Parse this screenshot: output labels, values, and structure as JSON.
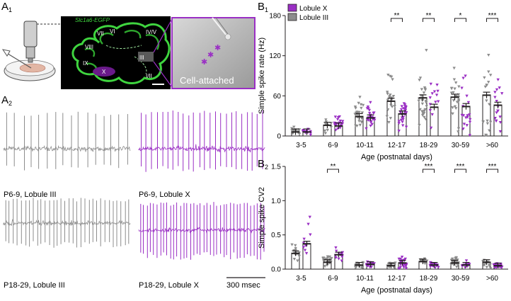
{
  "panel_labels": {
    "a1": "A",
    "a1_sub": "1",
    "a2": "A",
    "a2_sub": "2",
    "b1": "B",
    "b1_sub": "1",
    "b2": "B",
    "b2_sub": "2"
  },
  "micrograph": {
    "stain_label": "Slc1a6-EGFP",
    "lobules": [
      "VI",
      "VII",
      "IV/V",
      "VIII",
      "III",
      "IX",
      "X",
      "I/II"
    ],
    "inset_label": "Cell-attached"
  },
  "traces": {
    "p69_lobule_iii": "P6-9, Lobule III",
    "p69_lobule_x": "P6-9, Lobule X",
    "p1829_lobule_iii": "P18-29, Lobule III",
    "p1829_lobule_x": "P18-29, Lobule X",
    "scalebar": "300 msec"
  },
  "colors": {
    "lobule_x": "#9a2fc4",
    "lobule_iii": "#8c8c8c",
    "green": "#3fd43f"
  },
  "chart_data": [
    {
      "type": "scatter",
      "xlabel": "Age (postnatal days)",
      "ylabel": "Simple spike rate (Hz)",
      "ylim": [
        0,
        180
      ],
      "yticks": [
        "0",
        "60",
        "120",
        "180"
      ],
      "categories": [
        "3-5",
        "6-9",
        "10-11",
        "12-17",
        "18-29",
        "30-59",
        ">60"
      ],
      "legend": [
        "Lobule X",
        "Lobule III"
      ],
      "series": [
        {
          "name": "Lobule III",
          "means": [
            6,
            16,
            29,
            52,
            57,
            58,
            61
          ]
        },
        {
          "name": "Lobule X",
          "means": [
            6,
            15,
            27,
            33,
            43,
            44,
            46
          ]
        }
      ],
      "significance": [
        "",
        "",
        "",
        "**",
        "**",
        "*",
        "***"
      ]
    },
    {
      "type": "scatter",
      "xlabel": "Age (postnatal days)",
      "ylabel": "Simple spike CV2",
      "ylim": [
        0,
        1.5
      ],
      "yticks": [
        "0.0",
        "0.5",
        "1.0",
        "1.5"
      ],
      "categories": [
        "3-5",
        "6-9",
        "10-11",
        "12-17",
        "18-29",
        "30-59",
        ">60"
      ],
      "series": [
        {
          "name": "Lobule III",
          "means": [
            0.23,
            0.1,
            0.06,
            0.05,
            0.11,
            0.09,
            0.1
          ]
        },
        {
          "name": "Lobule X",
          "means": [
            0.37,
            0.21,
            0.07,
            0.09,
            0.06,
            0.06,
            0.05
          ]
        }
      ],
      "significance": [
        "",
        "**",
        "",
        "",
        "***",
        "***",
        "***"
      ]
    }
  ]
}
